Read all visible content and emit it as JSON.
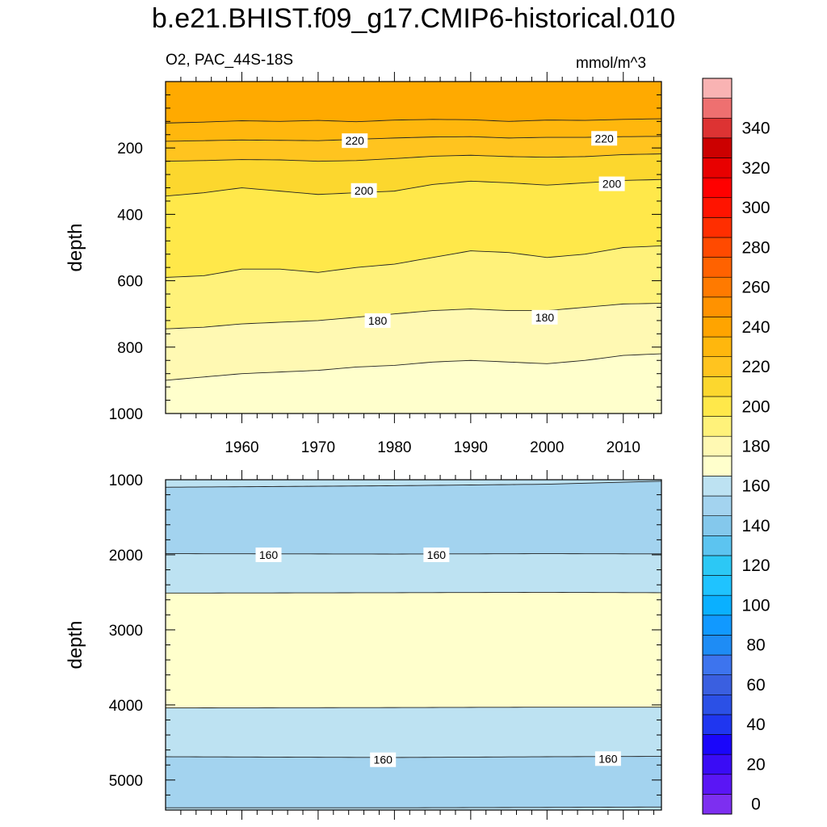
{
  "title": "b.e21.BHIST.f09_g17.CMIP6-historical.010",
  "variable_label": "O2, PAC_44S-18S",
  "units_label": "mmol/m^3",
  "chart_data": {
    "type": "contour",
    "x_axis": {
      "ticks": [
        1960,
        1970,
        1980,
        1990,
        2000,
        2010
      ],
      "tick_labels": [
        "1960",
        "1970",
        "1980",
        "1990",
        "2000",
        "2010"
      ],
      "range": [
        1950,
        2015
      ]
    },
    "colorbar": {
      "tick_labels": [
        "0",
        "20",
        "40",
        "60",
        "80",
        "100",
        "120",
        "140",
        "160",
        "180",
        "200",
        "220",
        "240",
        "260",
        "280",
        "300",
        "320",
        "340"
      ],
      "colors": [
        "#7d2ff0",
        "#5a16f5",
        "#3a0cf5",
        "#1a06fa",
        "#1f36f0",
        "#2b50e6",
        "#3a5fe0",
        "#3d74ee",
        "#1e8cf5",
        "#1199ff",
        "#0ab0ff",
        "#1fc3ff",
        "#2cc8f5",
        "#5cc4f0",
        "#84c8ec",
        "#a3d3ef",
        "#bde2f2",
        "#ffffcc",
        "#fff9b3",
        "#fff27a",
        "#ffe84a",
        "#fcd72e",
        "#ffc41f",
        "#ffb70d",
        "#ffa400",
        "#ff9200",
        "#ff7a00",
        "#ff6200",
        "#ff4a00",
        "#ff2e00",
        "#ff1400",
        "#ff0000",
        "#e80000",
        "#cc0000",
        "#dd3333",
        "#ee7070",
        "#f9b3b3"
      ]
    },
    "panels": [
      {
        "name": "upper",
        "ylabel": "depth",
        "y_range": [
          0,
          1000
        ],
        "y_inverted": true,
        "y_ticks": [
          200,
          400,
          600,
          800,
          1000
        ],
        "y_tick_labels": [
          "200",
          "400",
          "600",
          "800",
          "1000"
        ],
        "boundaries": [
          {
            "years": [
              1950,
              1955,
              1960,
              1965,
              1970,
              1975,
              1980,
              1985,
              1990,
              1995,
              2000,
              2005,
              2010,
              2015
            ],
            "depths": [
              125,
              122,
              118,
              120,
              117,
              121,
              116,
              114,
              115,
              120,
              116,
              117,
              114,
              112
            ]
          },
          {
            "years": [
              1950,
              1955,
              1960,
              1965,
              1970,
              1975,
              1980,
              1985,
              1990,
              1995,
              2000,
              2005,
              2010,
              2015
            ],
            "depths": [
              180,
              178,
              176,
              177,
              178,
              174,
              170,
              167,
              166,
              170,
              168,
              168,
              166,
              165
            ]
          },
          {
            "years": [
              1950,
              1955,
              1960,
              1965,
              1970,
              1975,
              1980,
              1985,
              1990,
              1995,
              2000,
              2005,
              2010,
              2015
            ],
            "depths": [
              240,
              238,
              235,
              236,
              240,
              238,
              232,
              225,
              222,
              226,
              228,
              226,
              220,
              218
            ]
          },
          {
            "years": [
              1950,
              1955,
              1960,
              1965,
              1970,
              1975,
              1980,
              1985,
              1990,
              1995,
              2000,
              2005,
              2010,
              2015
            ],
            "depths": [
              345,
              335,
              320,
              330,
              340,
              335,
              330,
              310,
              300,
              305,
              312,
              305,
              298,
              295
            ]
          },
          {
            "years": [
              1950,
              1955,
              1960,
              1965,
              1970,
              1975,
              1980,
              1985,
              1990,
              1995,
              2000,
              2005,
              2010,
              2015
            ],
            "depths": [
              590,
              585,
              565,
              565,
              575,
              560,
              550,
              530,
              510,
              515,
              530,
              520,
              500,
              495
            ]
          },
          {
            "years": [
              1950,
              1955,
              1960,
              1965,
              1970,
              1975,
              1980,
              1985,
              1990,
              1995,
              2000,
              2005,
              2010,
              2015
            ],
            "depths": [
              745,
              740,
              730,
              725,
              720,
              710,
              700,
              690,
              685,
              690,
              690,
              680,
              670,
              668
            ]
          },
          {
            "years": [
              1950,
              1955,
              1960,
              1965,
              1970,
              1975,
              1980,
              1985,
              1990,
              1995,
              2000,
              2005,
              2010,
              2015
            ],
            "depths": [
              900,
              890,
              880,
              875,
              870,
              860,
              855,
              845,
              840,
              845,
              850,
              840,
              825,
              820
            ]
          }
        ],
        "band_colors": [
          "#ffaa00",
          "#ffb70d",
          "#ffc41f",
          "#fcd72e",
          "#ffe84a",
          "#fff27a",
          "#fff9b3",
          "#ffffcc",
          "#bde2f2"
        ],
        "contour_labels": [
          {
            "text": "220",
            "year": 1974.8,
            "depth": 178
          },
          {
            "text": "220",
            "year": 2007.5,
            "depth": 171
          },
          {
            "text": "200",
            "year": 1976,
            "depth": 328
          },
          {
            "text": "200",
            "year": 2008.5,
            "depth": 308
          },
          {
            "text": "180",
            "year": 1977.8,
            "depth": 720
          },
          {
            "text": "180",
            "year": 1999.7,
            "depth": 710
          }
        ]
      },
      {
        "name": "lower",
        "ylabel": "depth",
        "y_range": [
          1000,
          5400
        ],
        "y_inverted": true,
        "y_ticks": [
          1000,
          2000,
          3000,
          4000,
          5000
        ],
        "y_tick_labels": [
          "1000",
          "2000",
          "3000",
          "4000",
          "5000"
        ],
        "boundaries": [
          {
            "years": [
              1950,
              1980,
              2000,
              2015
            ],
            "depths": [
              1100,
              1080,
              1060,
              1020
            ]
          },
          {
            "years": [
              1950,
              1980,
              2000,
              2015
            ],
            "depths": [
              1985,
              1990,
              1985,
              1988
            ]
          },
          {
            "years": [
              1950,
              1980,
              2000,
              2015
            ],
            "depths": [
              2510,
              2505,
              2500,
              2505
            ]
          },
          {
            "years": [
              1950,
              1980,
              2000,
              2015
            ],
            "depths": [
              4040,
              4035,
              4030,
              4030
            ]
          },
          {
            "years": [
              1950,
              1980,
              2000,
              2015
            ],
            "depths": [
              4690,
              4700,
              4690,
              4685
            ]
          },
          {
            "years": [
              1950,
              1980,
              2000,
              2015
            ],
            "depths": [
              5370,
              5370,
              5365,
              5360
            ]
          }
        ],
        "band_colors": [
          "#bde2f2",
          "#a3d3ef",
          "#bde2f2",
          "#ffffcc",
          "#bde2f2",
          "#a3d3ef",
          "#bde2f2"
        ],
        "contour_labels": [
          {
            "text": "160",
            "year": 1963.5,
            "depth": 2000
          },
          {
            "text": "160",
            "year": 1985.5,
            "depth": 2000
          },
          {
            "text": "160",
            "year": 1978.5,
            "depth": 4730
          },
          {
            "text": "160",
            "year": 2008,
            "depth": 4715
          }
        ]
      }
    ]
  }
}
